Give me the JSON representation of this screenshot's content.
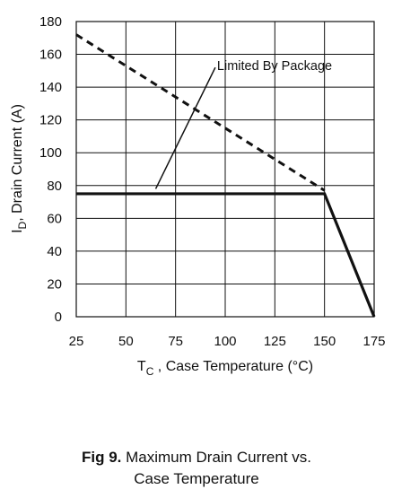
{
  "chart_data": {
    "type": "line",
    "xlabel_main": "T",
    "xlabel_sub": "C",
    "xlabel_rest": " , Case Temperature (°C)",
    "ylabel_main": "I",
    "ylabel_sub": "D",
    "ylabel_rest": ",  Drain Current (A)",
    "xlim": [
      25,
      175
    ],
    "ylim": [
      0,
      180
    ],
    "xticks": [
      25,
      50,
      75,
      100,
      125,
      150,
      175
    ],
    "yticks": [
      0,
      20,
      40,
      60,
      80,
      100,
      120,
      140,
      160,
      180
    ],
    "grid": true,
    "series": [
      {
        "style": "dashed",
        "x": [
          25,
          150
        ],
        "y": [
          172,
          77
        ]
      },
      {
        "style": "solid",
        "x": [
          25,
          150,
          175
        ],
        "y": [
          75,
          75,
          0
        ]
      }
    ],
    "annotation": {
      "text": "Limited By Package",
      "line_from": [
        65,
        78
      ],
      "line_to": [
        95,
        152
      ]
    }
  },
  "caption": {
    "number": "Fig 9.",
    "line1": "Maximum Drain Current vs.",
    "line2": "Case Temperature"
  }
}
